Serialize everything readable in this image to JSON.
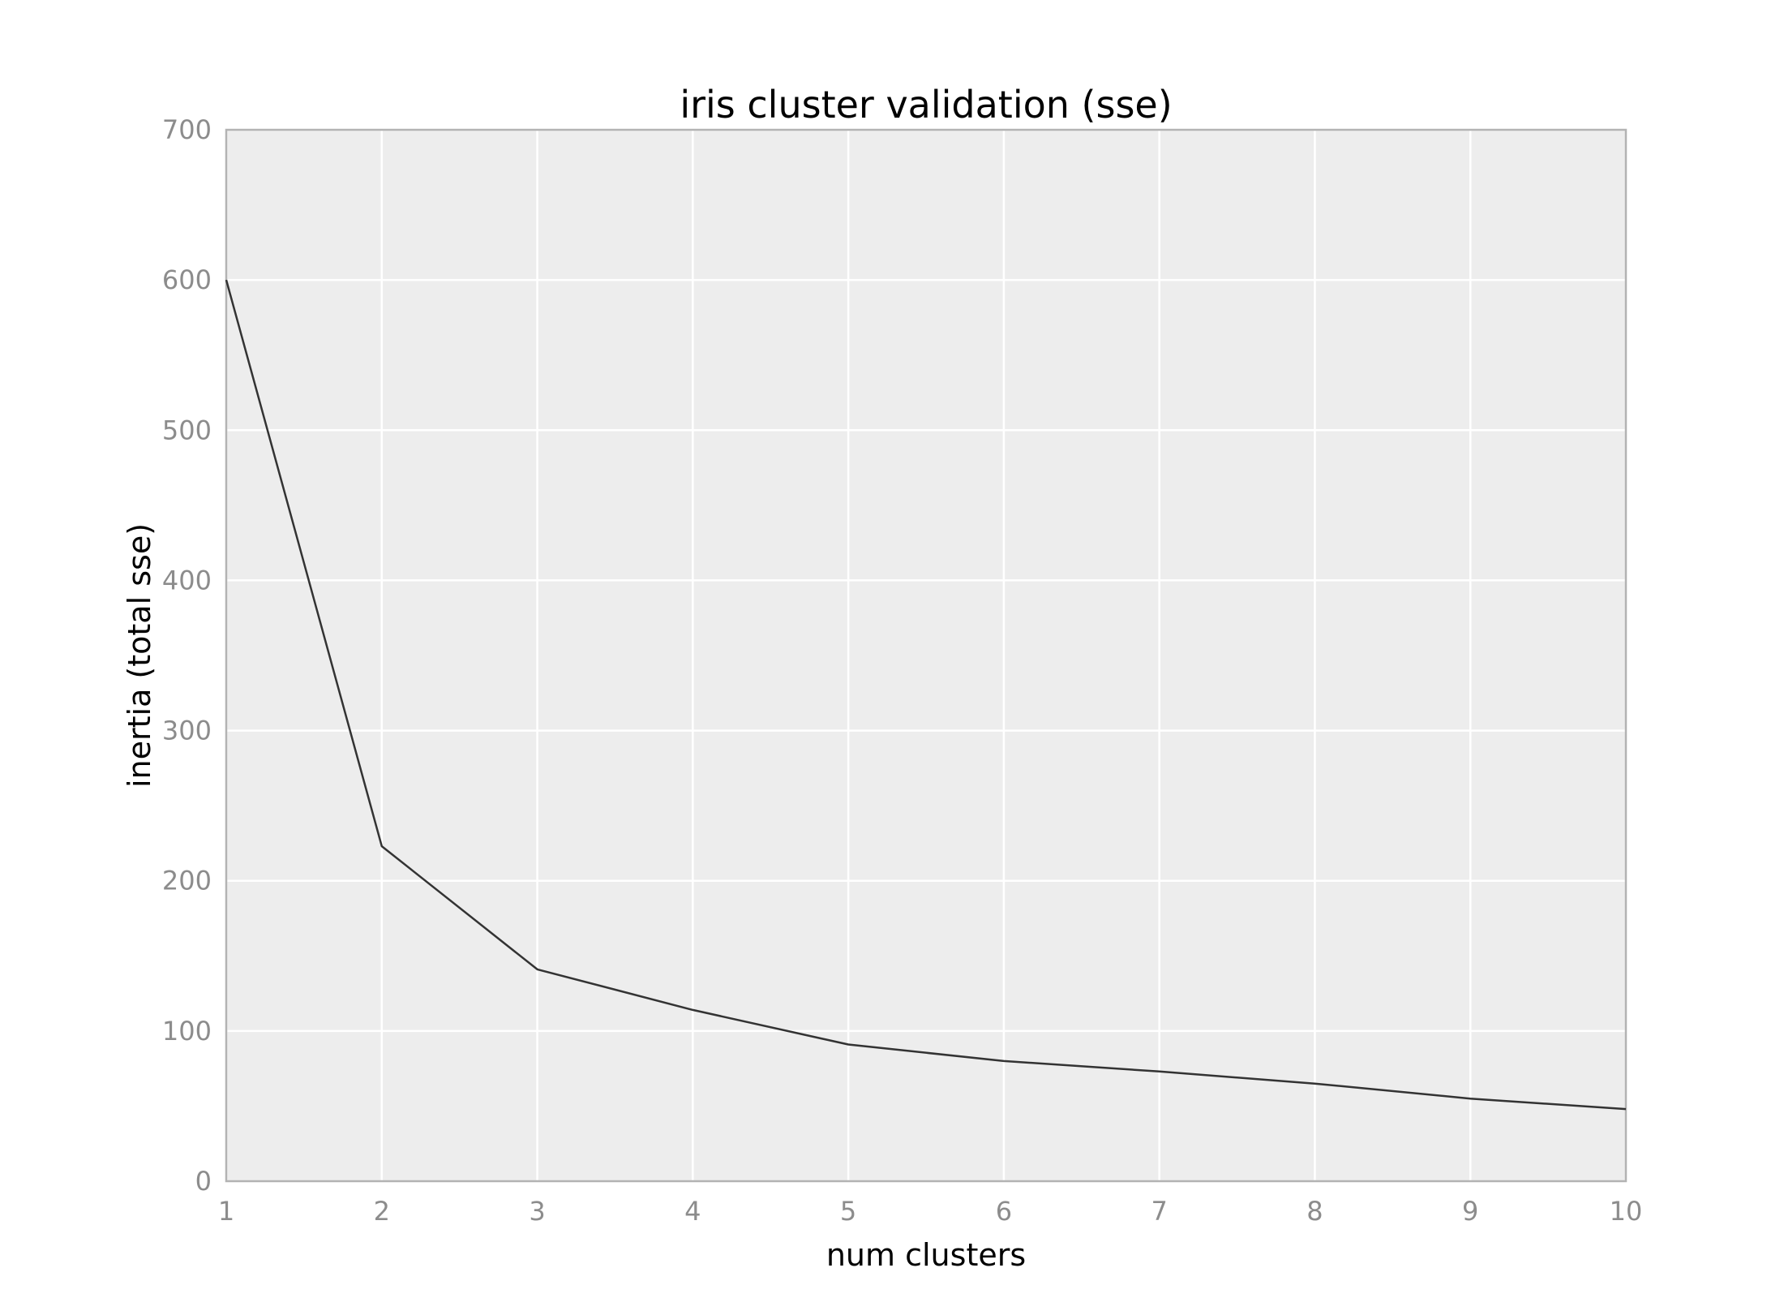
{
  "chart_data": {
    "type": "line",
    "title": "iris cluster validation (sse)",
    "xlabel": "num clusters",
    "ylabel": "inertia (total sse)",
    "xlim": [
      1,
      10
    ],
    "ylim": [
      0,
      700
    ],
    "x_ticks": [
      "1",
      "2",
      "3",
      "4",
      "5",
      "6",
      "7",
      "8",
      "9",
      "10"
    ],
    "y_ticks": [
      "0",
      "100",
      "200",
      "300",
      "400",
      "500",
      "600",
      "700"
    ],
    "grid": true,
    "series": [
      {
        "x": [
          1,
          2,
          3,
          4,
          5,
          6,
          7,
          8,
          9,
          10
        ],
        "values": [
          600,
          223,
          141,
          114,
          91,
          80,
          73,
          65,
          55,
          48
        ]
      }
    ],
    "colors": {
      "plot_background": "#ededed",
      "grid": "#ffffff",
      "frame": "#b3b3b3",
      "line": "#333333",
      "tick_text": "#8c8c8c"
    }
  }
}
